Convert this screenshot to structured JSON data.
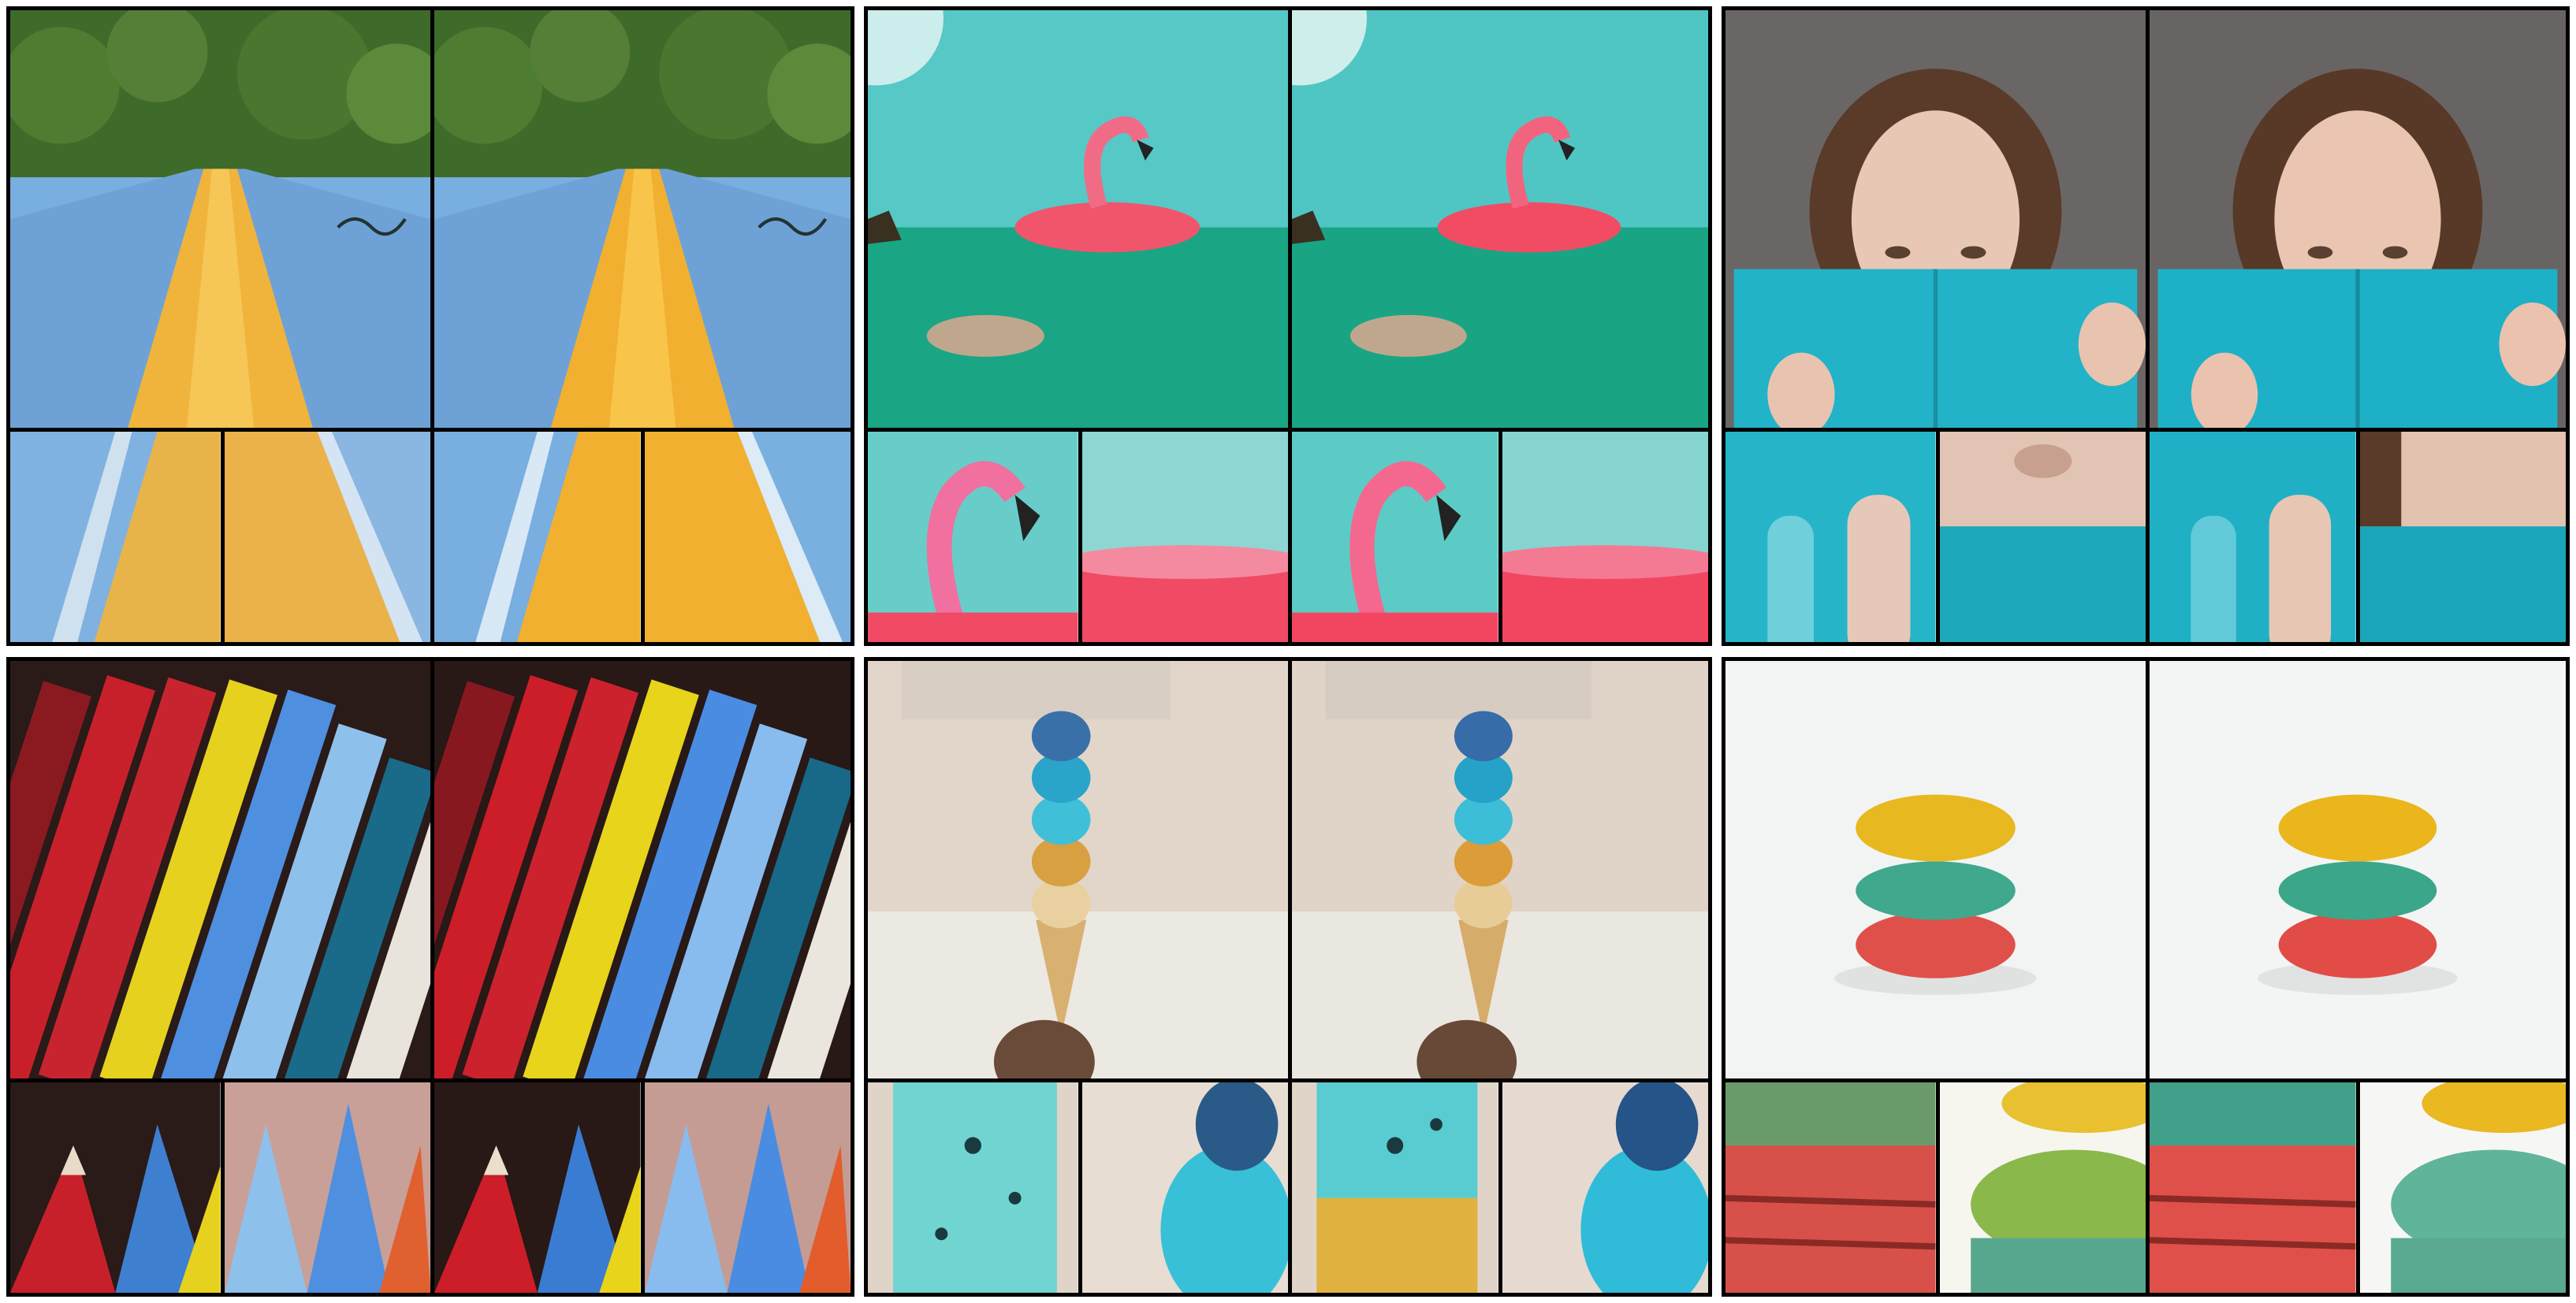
{
  "figure": {
    "rows": 2,
    "columns": 3,
    "panels_per_group": 2,
    "crops_per_panel": 2
  },
  "groups": [
    {
      "subject": "water-slide",
      "colors": {
        "sky": "#3f6b2a",
        "slide": "#78aee0",
        "lane": "#f0b43c"
      }
    },
    {
      "subject": "flamingo-float",
      "colors": {
        "sky": "#4fc6c4",
        "water": "#19a584",
        "float": "#f0556b"
      }
    },
    {
      "subject": "woman-book",
      "colors": {
        "wall": "#6a6665",
        "book": "#22b3c8",
        "hair": "#5a3a28"
      }
    },
    {
      "subject": "color-pencils",
      "colors": {
        "bg": "#2a1a18",
        "red": "#c8202a",
        "blue": "#4f8fe0",
        "yellow": "#e6d21e"
      }
    },
    {
      "subject": "ice-cream",
      "colors": {
        "wall": "#e2d6ca",
        "scoop": "#40c0d8",
        "cone": "#d8b070"
      }
    },
    {
      "subject": "macarons",
      "colors": {
        "bg": "#f2f4f3",
        "yellow": "#e8b820",
        "teal": "#40a88c",
        "red": "#e0504a"
      }
    }
  ]
}
